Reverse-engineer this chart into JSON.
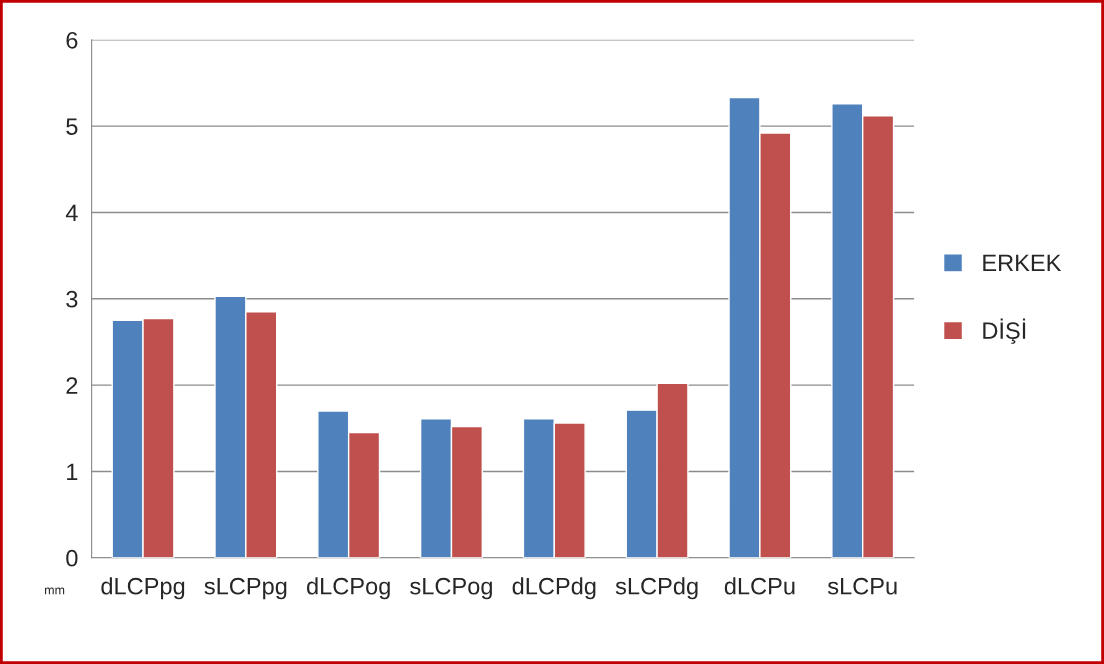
{
  "chart_data": {
    "type": "bar",
    "categories": [
      "dLCPpg",
      "sLCPpg",
      "dLCPog",
      "sLCPog",
      "dLCPdg",
      "sLCPdg",
      "dLCPu",
      "sLCPu"
    ],
    "series": [
      {
        "name": "ERKEK",
        "color": "#4f81bd",
        "values": [
          2.75,
          3.03,
          1.7,
          1.61,
          1.61,
          1.71,
          5.33,
          5.26
        ]
      },
      {
        "name": "DİŞİ",
        "color": "#c0504d",
        "values": [
          2.77,
          2.85,
          1.45,
          1.52,
          1.56,
          2.02,
          4.92,
          5.12
        ]
      }
    ],
    "ylim": [
      0,
      6
    ],
    "yticks": [
      0,
      1,
      2,
      3,
      4,
      5,
      6
    ],
    "grid": "y",
    "legend": "right",
    "annotations": [
      "mm"
    ]
  }
}
